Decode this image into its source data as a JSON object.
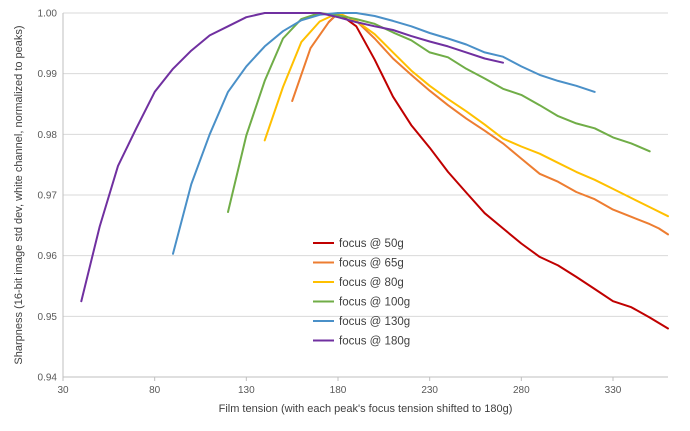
{
  "chart_data": {
    "type": "line",
    "title": "",
    "xlabel": "Film tension (with each peak's focus tension shifted to 180g)",
    "ylabel": "Sharpness (16-bit image std dev, white channel, normalized to peaks)",
    "xlim": [
      30,
      360
    ],
    "ylim": [
      0.94,
      1.0
    ],
    "xticks": [
      30,
      80,
      130,
      180,
      230,
      280,
      330
    ],
    "yticks": [
      0.94,
      0.95,
      0.96,
      0.97,
      0.98,
      0.99,
      1.0
    ],
    "ytick_labels": [
      "0.94",
      "0.95",
      "0.96",
      "0.97",
      "0.98",
      "0.99",
      "1.00"
    ],
    "grid": "horizontal",
    "legend_position": "center",
    "series": [
      {
        "name": "focus @ 50g",
        "color": "#C00000",
        "x": [
          175,
          180,
          190,
          200,
          210,
          220,
          230,
          240,
          250,
          260,
          270,
          280,
          290,
          300,
          310,
          320,
          330,
          340,
          350,
          360
        ],
        "y": [
          0.9985,
          1.0,
          0.9978,
          0.9923,
          0.9862,
          0.9815,
          0.9778,
          0.9738,
          0.9704,
          0.967,
          0.9645,
          0.962,
          0.9598,
          0.9584,
          0.9565,
          0.9545,
          0.9525,
          0.9515,
          0.9498,
          0.948
        ]
      },
      {
        "name": "focus @ 65g",
        "color": "#ED7D31",
        "x": [
          155,
          165,
          175,
          180,
          190,
          200,
          210,
          220,
          230,
          240,
          250,
          260,
          270,
          280,
          290,
          300,
          310,
          320,
          330,
          340,
          350,
          355,
          360
        ],
        "y": [
          0.9855,
          0.9942,
          0.9985,
          1.0,
          0.9987,
          0.9958,
          0.9925,
          0.9898,
          0.9872,
          0.9848,
          0.9826,
          0.9806,
          0.9785,
          0.976,
          0.9735,
          0.9722,
          0.9705,
          0.9693,
          0.9676,
          0.9664,
          0.9652,
          0.9645,
          0.9635
        ]
      },
      {
        "name": "focus @ 80g",
        "color": "#FFC000",
        "x": [
          140,
          150,
          160,
          170,
          180,
          190,
          200,
          210,
          220,
          230,
          240,
          250,
          260,
          270,
          280,
          290,
          300,
          310,
          320,
          330,
          340,
          350,
          360
        ],
        "y": [
          0.979,
          0.9878,
          0.9952,
          0.9986,
          1.0,
          0.9987,
          0.9965,
          0.9935,
          0.9905,
          0.988,
          0.9858,
          0.9838,
          0.9816,
          0.9793,
          0.978,
          0.9768,
          0.9753,
          0.9738,
          0.9725,
          0.971,
          0.9695,
          0.968,
          0.9665
        ]
      },
      {
        "name": "focus @ 100g",
        "color": "#70AD47",
        "x": [
          120,
          130,
          140,
          150,
          160,
          170,
          180,
          190,
          200,
          210,
          220,
          230,
          240,
          250,
          260,
          270,
          280,
          290,
          300,
          310,
          320,
          330,
          340,
          350
        ],
        "y": [
          0.9672,
          0.9798,
          0.9888,
          0.9958,
          0.999,
          1.0,
          0.9996,
          0.999,
          0.9982,
          0.9968,
          0.9955,
          0.9935,
          0.9927,
          0.9908,
          0.9892,
          0.9875,
          0.9865,
          0.9848,
          0.983,
          0.9818,
          0.981,
          0.9795,
          0.9785,
          0.9772
        ]
      },
      {
        "name": "focus @ 130g",
        "color": "#4A90C8",
        "x": [
          90,
          100,
          110,
          120,
          130,
          140,
          150,
          160,
          170,
          180,
          190,
          200,
          210,
          220,
          230,
          240,
          250,
          260,
          270,
          280,
          290,
          300,
          310,
          320
        ],
        "y": [
          0.9603,
          0.9718,
          0.98,
          0.987,
          0.9912,
          0.9945,
          0.997,
          0.9988,
          0.9997,
          1.0,
          1.0,
          0.9995,
          0.9987,
          0.9978,
          0.9967,
          0.9958,
          0.9948,
          0.9935,
          0.9928,
          0.9912,
          0.9898,
          0.9888,
          0.988,
          0.987
        ]
      },
      {
        "name": "focus @ 180g",
        "color": "#7030A0",
        "x": [
          40,
          50,
          60,
          70,
          80,
          90,
          100,
          110,
          120,
          130,
          140,
          150,
          160,
          170,
          180,
          190,
          200,
          210,
          220,
          230,
          240,
          250,
          260,
          270
        ],
        "y": [
          0.9525,
          0.9648,
          0.9748,
          0.981,
          0.987,
          0.9908,
          0.9938,
          0.9963,
          0.9978,
          0.9993,
          1.0,
          1.0,
          1.0,
          1.0,
          0.9993,
          0.9985,
          0.9978,
          0.9972,
          0.9962,
          0.9953,
          0.9945,
          0.9935,
          0.9925,
          0.9918
        ]
      }
    ]
  }
}
